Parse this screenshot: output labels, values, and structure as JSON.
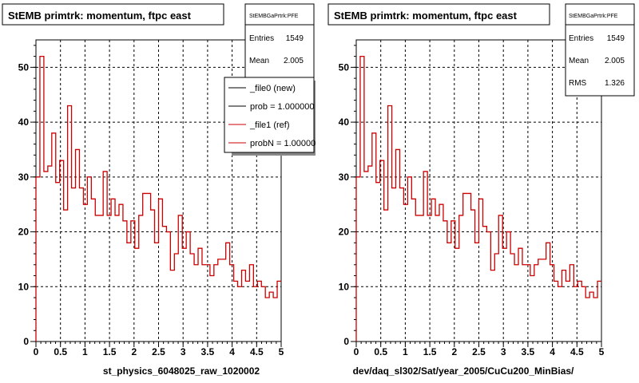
{
  "footer_text": "",
  "chart_data": [
    {
      "type": "step-histogram",
      "title": "StEMB primtrk: momentum, ftpc east",
      "xlabel": "st_physics_6048025_raw_1020002",
      "ylabel": "",
      "xlim": [
        0,
        5
      ],
      "ylim": [
        0,
        55
      ],
      "x_ticks": [
        "0",
        "0.5",
        "1",
        "1.5",
        "2",
        "2.5",
        "3",
        "3.5",
        "4",
        "4.5",
        "5"
      ],
      "y_ticks": [
        "0",
        "10",
        "20",
        "30",
        "40",
        "50"
      ],
      "grid": true,
      "bin_width": 0.1,
      "series": [
        {
          "name": "_file1 (ref)",
          "color": "#cc0000",
          "values": [
            30,
            52,
            31,
            32,
            38,
            29,
            33,
            24,
            43,
            28,
            35,
            28,
            25,
            30,
            26,
            23,
            23,
            31,
            23,
            26,
            23,
            25,
            22,
            18,
            22,
            17,
            23,
            27,
            27,
            24,
            18,
            26,
            21,
            20,
            13,
            16,
            23,
            17,
            20,
            16,
            14,
            17,
            14,
            14,
            12,
            14,
            15,
            15,
            18,
            14,
            11,
            10,
            13,
            11,
            14,
            10,
            11,
            10,
            8,
            9,
            8,
            11
          ]
        }
      ],
      "stats_box": {
        "header": "StEMBGaPrtrk:PFE",
        "entries_label": "Entries",
        "entries": "1549",
        "mean_label": "Mean",
        "mean": "2.005"
      },
      "legend": {
        "placement": "top-right",
        "entries": [
          {
            "label": "_file0 (new)",
            "color": "#000000"
          },
          {
            "label": "prob = 1.000000",
            "color": "#000000"
          },
          {
            "label": "_file1 (ref)",
            "color": "#cc0000"
          },
          {
            "label": "probN = 1.000000",
            "color": "#cc0000"
          }
        ]
      }
    },
    {
      "type": "step-histogram",
      "title": "StEMB primtrk: momentum, ftpc east",
      "xlabel": "dev/daq_sl302/Sat/year_2005/CuCu200_MinBias/",
      "ylabel": "",
      "xlim": [
        0,
        5
      ],
      "ylim": [
        0,
        55
      ],
      "x_ticks": [
        "0",
        "0.5",
        "1",
        "1.5",
        "2",
        "2.5",
        "3",
        "3.5",
        "4",
        "4.5",
        "5"
      ],
      "y_ticks": [
        "0",
        "10",
        "20",
        "30",
        "40",
        "50"
      ],
      "grid": true,
      "bin_width": 0.1,
      "series": [
        {
          "name": "",
          "color": "#cc0000",
          "values": [
            30,
            52,
            31,
            32,
            38,
            29,
            33,
            24,
            43,
            28,
            35,
            28,
            25,
            30,
            26,
            23,
            23,
            31,
            23,
            26,
            23,
            25,
            22,
            18,
            22,
            17,
            23,
            27,
            27,
            24,
            18,
            26,
            21,
            20,
            13,
            16,
            23,
            17,
            20,
            16,
            14,
            17,
            14,
            14,
            12,
            14,
            15,
            15,
            18,
            14,
            11,
            10,
            13,
            11,
            14,
            10,
            11,
            10,
            8,
            9,
            8,
            11
          ]
        }
      ],
      "stats_box": {
        "header": "StEMBGaPrtrk:PFE",
        "entries_label": "Entries",
        "entries": "1549",
        "mean_label": "Mean",
        "mean": "2.005",
        "rms_label": "RMS",
        "rms": "1.326"
      }
    }
  ]
}
